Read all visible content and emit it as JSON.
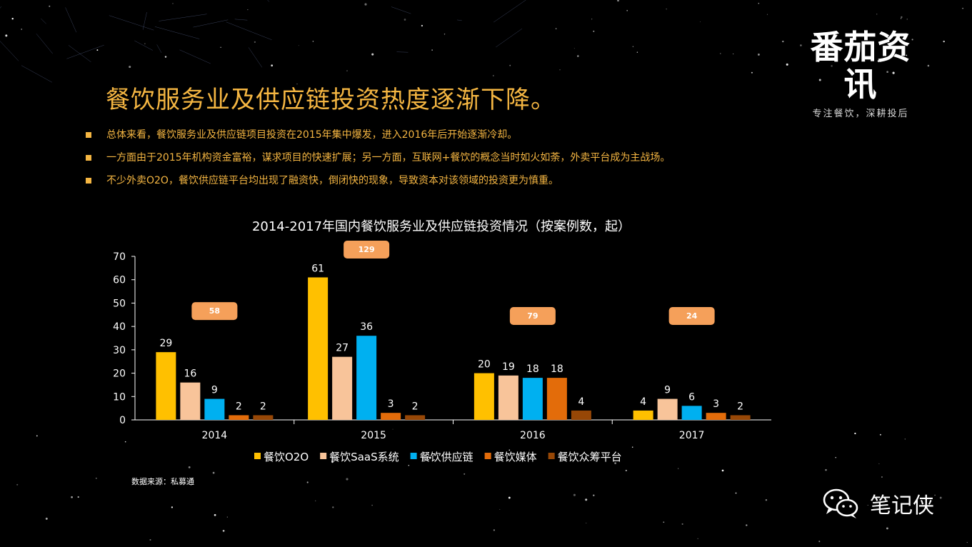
{
  "logo": {
    "name": "番茄资讯",
    "slogan": "专注餐饮，深耕投后"
  },
  "page_title": "餐饮服务业及供应链投资热度逐渐下降。",
  "bullets": [
    "总体来看，餐饮服务业及供应链项目投资在2015年集中爆发，进入2016年后开始逐渐冷却。",
    "一方面由于2015年机构资金富裕，谋求项目的快速扩展；另一方面，互联网+餐饮的概念当时如火如荼，外卖平台成为主战场。",
    "不少外卖O2O，餐饮供应链平台均出现了融资快，倒闭快的现象，导致资本对该领域的投资更为慎重。"
  ],
  "colors": {
    "title": "#f5b642",
    "bullet": "#f5b642",
    "total_badge": "#f5a05a",
    "axis": "#ffffff"
  },
  "chart_data": {
    "type": "bar",
    "title": "2014-2017年国内餐饮服务业及供应链投资情况（按案例数，起）",
    "categories": [
      "2014",
      "2015",
      "2016",
      "2017"
    ],
    "ylim": [
      0,
      70
    ],
    "yticks": [
      0,
      10,
      20,
      30,
      40,
      50,
      60,
      70
    ],
    "grid": false,
    "legend_position": "bottom",
    "series": [
      {
        "name": "餐饮O2O",
        "color": "#ffc000",
        "values": [
          29,
          61,
          20,
          4
        ]
      },
      {
        "name": "餐饮SaaS系统",
        "color": "#f8c49a",
        "values": [
          16,
          27,
          19,
          9
        ]
      },
      {
        "name": "餐饮供应链",
        "color": "#00b0f0",
        "values": [
          9,
          36,
          18,
          6
        ]
      },
      {
        "name": "餐饮媒体",
        "color": "#e36c0a",
        "values": [
          2,
          3,
          18,
          3
        ]
      },
      {
        "name": "餐饮众筹平台",
        "color": "#974706",
        "values": [
          2,
          2,
          4,
          2
        ]
      }
    ],
    "totals": [
      58,
      129,
      79,
      24
    ],
    "source": "数据来源：私募通"
  },
  "watermark": {
    "text": "笔记侠",
    "icon": "wechat-icon"
  }
}
